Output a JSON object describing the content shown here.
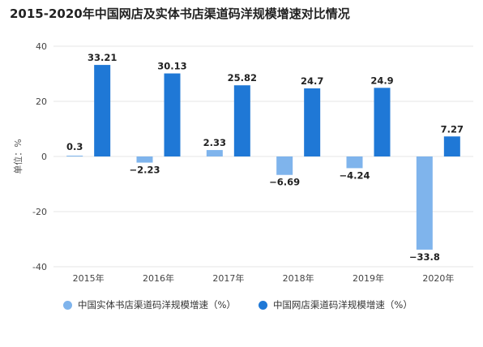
{
  "title": "2015-2020年中国网店及实体书店渠道码洋规模增速对比情况",
  "colors": {
    "physical": "#7fb4ec",
    "online": "#1f78d6",
    "grid": "#e6e6e6",
    "axis": "#555555"
  },
  "chart_data": {
    "type": "bar",
    "categories": [
      "2015年",
      "2016年",
      "2017年",
      "2018年",
      "2019年",
      "2020年"
    ],
    "series": [
      {
        "name": "中国实体书店渠道码洋规模增速（%）",
        "values": [
          0.3,
          -2.23,
          2.33,
          -6.69,
          -4.24,
          -33.8
        ],
        "labels": [
          "0.3",
          "−2.23",
          "2.33",
          "−6.69",
          "−4.24",
          "−33.8"
        ]
      },
      {
        "name": "中国网店渠道码洋规模增速（%）",
        "values": [
          33.21,
          30.13,
          25.82,
          24.7,
          24.9,
          7.27
        ],
        "labels": [
          "33.21",
          "30.13",
          "25.82",
          "24.7",
          "24.9",
          "7.27"
        ]
      }
    ],
    "ylabel": "单位：%",
    "ylim": [
      -40,
      40
    ],
    "yticks": [
      40,
      20,
      0,
      -20,
      -40
    ],
    "ytick_labels": [
      "40",
      "20",
      "0",
      "-20",
      "-40"
    ],
    "grid": true,
    "legend_position": "bottom"
  }
}
